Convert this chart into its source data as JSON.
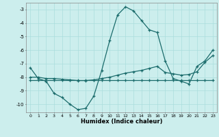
{
  "xlabel": "Humidex (Indice chaleur)",
  "background_color": "#cceeed",
  "grid_color": "#aadddd",
  "line_color": "#1a6b6b",
  "xlim": [
    -0.5,
    23.5
  ],
  "ylim": [
    -10.6,
    -2.5
  ],
  "yticks": [
    -3,
    -4,
    -5,
    -6,
    -7,
    -8,
    -9,
    -10
  ],
  "xticks": [
    0,
    1,
    2,
    3,
    4,
    5,
    6,
    7,
    8,
    9,
    10,
    11,
    12,
    13,
    14,
    15,
    16,
    17,
    18,
    19,
    20,
    21,
    22,
    23
  ],
  "series": [
    {
      "x": [
        0,
        1,
        2,
        3,
        4,
        5,
        6,
        7,
        8,
        9,
        10,
        11,
        12,
        13,
        14,
        15,
        16,
        17,
        18,
        19,
        20,
        21,
        22,
        23
      ],
      "y": [
        -7.3,
        -8.1,
        -8.3,
        -9.2,
        -9.5,
        -10.0,
        -10.4,
        -10.3,
        -9.4,
        -7.5,
        -5.3,
        -3.4,
        -2.8,
        -3.1,
        -3.8,
        -4.5,
        -4.7,
        -6.8,
        -8.1,
        -8.3,
        -8.5,
        -7.2,
        -6.8,
        -6.0
      ]
    },
    {
      "x": [
        0,
        1,
        2,
        3,
        4,
        5,
        6,
        7,
        8,
        9,
        10,
        11,
        12,
        13,
        14,
        15,
        16,
        17,
        18,
        19,
        20,
        21,
        22,
        23
      ],
      "y": [
        -8.2,
        -8.2,
        -8.2,
        -8.2,
        -8.2,
        -8.2,
        -8.2,
        -8.2,
        -8.2,
        -8.2,
        -8.2,
        -8.2,
        -8.2,
        -8.2,
        -8.2,
        -8.2,
        -8.2,
        -8.2,
        -8.2,
        -8.2,
        -8.2,
        -8.2,
        -8.2,
        -8.2
      ]
    },
    {
      "x": [
        0,
        1,
        2,
        3,
        4,
        5,
        6,
        7,
        8,
        9,
        10,
        11,
        12,
        13,
        14,
        15,
        16,
        17,
        18,
        19,
        20,
        21,
        22,
        23
      ],
      "y": [
        -8.0,
        -8.0,
        -8.1,
        -8.1,
        -8.15,
        -8.2,
        -8.25,
        -8.25,
        -8.2,
        -8.1,
        -8.0,
        -7.85,
        -7.7,
        -7.6,
        -7.5,
        -7.35,
        -7.2,
        -7.65,
        -7.75,
        -7.85,
        -7.8,
        -7.6,
        -6.9,
        -6.4
      ]
    }
  ]
}
